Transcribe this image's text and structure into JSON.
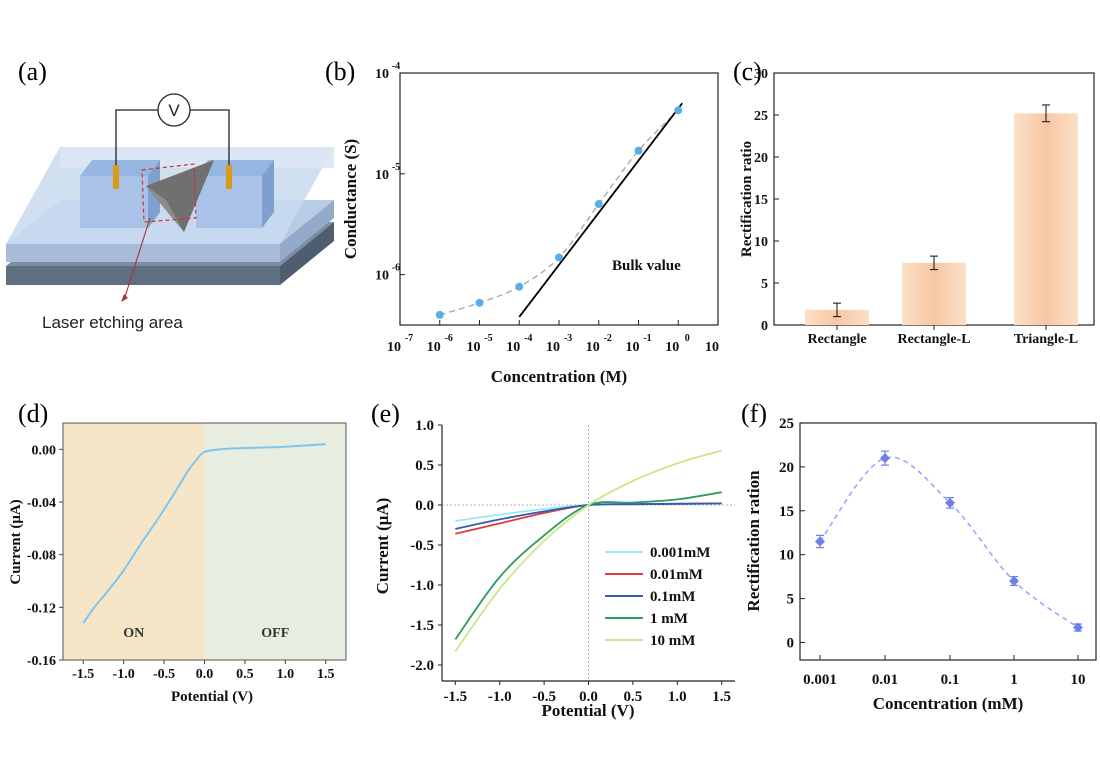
{
  "panel_labels": [
    "(a)",
    "(b)",
    "(c)",
    "(d)",
    "(e)",
    "(f)"
  ],
  "illustration": {
    "meter_symbol": "V",
    "caption": "Laser etching area"
  },
  "chart_data": [
    {
      "panel": "(b)",
      "type": "scatter",
      "xlabel": "Concentration (M)",
      "ylabel": "Conductance (S)",
      "xscale": "log",
      "yscale": "log",
      "xlim_exp": [
        -7,
        1
      ],
      "ylim_exp": [
        -6.5,
        -4
      ],
      "x_tick_exps": [
        -7,
        -6,
        -5,
        -4,
        -3,
        -2,
        -1,
        0,
        1
      ],
      "y_tick_exps": [
        -6,
        -5,
        -4
      ],
      "annotation": "Bulk value",
      "points_log10": [
        [
          -6,
          -6.4
        ],
        [
          -5,
          -6.28
        ],
        [
          -4,
          -6.12
        ],
        [
          -3,
          -5.83
        ],
        [
          -2,
          -5.3
        ],
        [
          -1,
          -4.77
        ],
        [
          0,
          -4.37
        ]
      ],
      "bulk_line_log10": [
        [
          -4,
          -6.42
        ],
        [
          0.1,
          -4.3
        ]
      ],
      "colors": {
        "points": "#5aaee8",
        "fit": "#aaaaaa",
        "bulk": "#000000"
      }
    },
    {
      "panel": "(c)",
      "type": "bar",
      "ylabel": "Rectification ratio",
      "categories": [
        "Rectangle",
        "Rectangle-L",
        "Triangle-L"
      ],
      "values": [
        1.8,
        7.4,
        25.2
      ],
      "errors": [
        0.8,
        0.8,
        1.0
      ],
      "ylim": [
        0,
        30
      ],
      "y_ticks": [
        0,
        5,
        10,
        15,
        20,
        25,
        30
      ],
      "colors": {
        "bar": "#f8c7a3"
      }
    },
    {
      "panel": "(d)",
      "type": "line",
      "xlabel": "Potential (V)",
      "ylabel": "Current (μA)",
      "xlim": [
        -1.75,
        1.75
      ],
      "ylim": [
        -0.16,
        0.02
      ],
      "x_ticks": [
        "-1.5",
        "-1.0",
        "-0.5",
        "0.0",
        "0.5",
        "1.0",
        "1.5"
      ],
      "y_ticks": [
        "0.00",
        "-0.04",
        "-0.08",
        "-0.12",
        "-0.16"
      ],
      "regions": [
        {
          "label": "ON",
          "from": -1.75,
          "to": 0,
          "color": "#f7e5c8"
        },
        {
          "label": "OFF",
          "from": 0,
          "to": 1.75,
          "color": "#e7eee0"
        }
      ],
      "x": [
        -1.5,
        -1.35,
        -1.2,
        -1.0,
        -0.8,
        -0.6,
        -0.4,
        -0.2,
        -0.1,
        0.0,
        0.2,
        0.5,
        1.0,
        1.5
      ],
      "y": [
        -0.132,
        -0.119,
        -0.108,
        -0.092,
        -0.073,
        -0.055,
        -0.036,
        -0.016,
        -0.008,
        -0.002,
        0.0,
        0.001,
        0.002,
        0.004
      ],
      "colors": {
        "line": "#7fc6ee"
      }
    },
    {
      "panel": "(e)",
      "type": "line",
      "xlabel": "Potential (V)",
      "ylabel": "Current (μA)",
      "xlim": [
        -1.65,
        1.65
      ],
      "ylim": [
        -2.2,
        1.0
      ],
      "x_ticks": [
        "-1.5",
        "-1.0",
        "-0.5",
        "0.0",
        "0.5",
        "1.0",
        "1.5"
      ],
      "y_ticks": [
        "1.0",
        "0.5",
        "0.0",
        "-0.5",
        "-1.0",
        "-1.5",
        "-2.0"
      ],
      "x": [
        -1.5,
        -1.0,
        -0.5,
        0.0,
        0.5,
        1.0,
        1.5
      ],
      "series": [
        {
          "name": "0.001mM",
          "color": "#9be7f2",
          "values": [
            -0.2,
            -0.12,
            -0.05,
            0.0,
            0.01,
            0.015,
            0.02
          ]
        },
        {
          "name": "0.01mM",
          "color": "#e33b3b",
          "values": [
            -0.36,
            -0.23,
            -0.1,
            0.0,
            0.01,
            0.015,
            0.02
          ]
        },
        {
          "name": "0.1mM",
          "color": "#2e5fb8",
          "values": [
            -0.3,
            -0.18,
            -0.08,
            0.0,
            0.01,
            0.015,
            0.02
          ]
        },
        {
          "name": "1 mM",
          "color": "#2e9b5f",
          "values": [
            -1.68,
            -0.9,
            -0.38,
            0.0,
            0.03,
            0.07,
            0.16
          ]
        },
        {
          "name": "10 mM",
          "color": "#c8e88a",
          "values": [
            -1.83,
            -1.05,
            -0.45,
            0.0,
            0.3,
            0.52,
            0.68
          ]
        }
      ]
    },
    {
      "panel": "(f)",
      "type": "scatter",
      "xlabel": "Concentration (mM)",
      "ylabel": "Rectification ration",
      "categories": [
        "0.001",
        "0.01",
        "0.1",
        "1",
        "10"
      ],
      "values": [
        11.5,
        21.0,
        15.9,
        7.0,
        1.7
      ],
      "errors": [
        0.7,
        0.8,
        0.6,
        0.5,
        0.4
      ],
      "ylim": [
        -2,
        25
      ],
      "y_ticks": [
        0,
        5,
        10,
        15,
        20,
        25
      ],
      "colors": {
        "points": "#6f7fe8",
        "fit": "#9aa8ff"
      }
    }
  ]
}
